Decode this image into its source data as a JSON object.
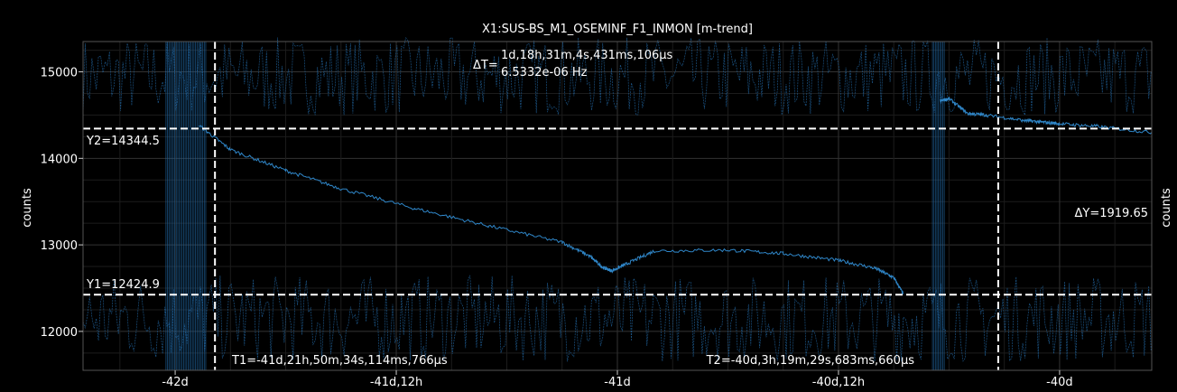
{
  "chart_data": {
    "type": "line",
    "title": "X1:SUS-BS_M1_OSEMINF_F1_INMON [m-trend]",
    "ylabel": "counts",
    "ylabel_right": "counts",
    "x_tick_labels": [
      "-42d",
      "-41d,12h",
      "-41d",
      "-40d,12h",
      "-40d"
    ],
    "x_ticks_hours": [
      -1008,
      -996,
      -984,
      -972,
      -960
    ],
    "xlim_hours": [
      -1013,
      -955
    ],
    "y_ticks": [
      12000,
      13000,
      14000,
      15000
    ],
    "ylim": [
      11550,
      15350
    ],
    "grid": true,
    "series": [
      {
        "x_hours": [
          -1006.7,
          -1005.0,
          -1002.0,
          -999.0,
          -995.0,
          -991.0,
          -987.0,
          -985.5,
          -984.8,
          -984.3,
          -983.5,
          -982.0,
          -978.0,
          -975.0,
          -972.0,
          -970.0,
          -969.0,
          -968.5
        ],
        "values": [
          14380,
          14100,
          13860,
          13650,
          13420,
          13220,
          13030,
          12870,
          12740,
          12700,
          12780,
          12930,
          12940,
          12900,
          12820,
          12730,
          12620,
          12440
        ]
      },
      {
        "x_hours": [
          -966.5,
          -966.0,
          -965.0,
          -964.0,
          -962.0,
          -961.0,
          -960.0,
          -958.0,
          -955.0
        ],
        "values": [
          14660,
          14690,
          14520,
          14500,
          14440,
          14420,
          14400,
          14370,
          14300
        ]
      }
    ],
    "cursors": {
      "T1": "T1=-41d,21h,50m,34s,114ms,766µs",
      "T2": "T2=-40d,3h,19m,29s,683ms,660µs",
      "T1_hours": -1005.84,
      "T2_hours": -963.33,
      "Y1": "Y1=12424.9",
      "Y2": "Y2=14344.5",
      "Y1_value": 12424.9,
      "Y2_value": 14344.5,
      "delta_t_label": "ΔT=",
      "delta_t": "1d,18h,31m,4s,431ms,106µs",
      "delta_f": "6.5332e-06 Hz",
      "delta_y": "ΔY=1919.65"
    },
    "colors": {
      "series": "#2f86c8",
      "band": "#1f5f96",
      "cursor": "#ffffff",
      "grid": "#2a2a2a"
    }
  }
}
